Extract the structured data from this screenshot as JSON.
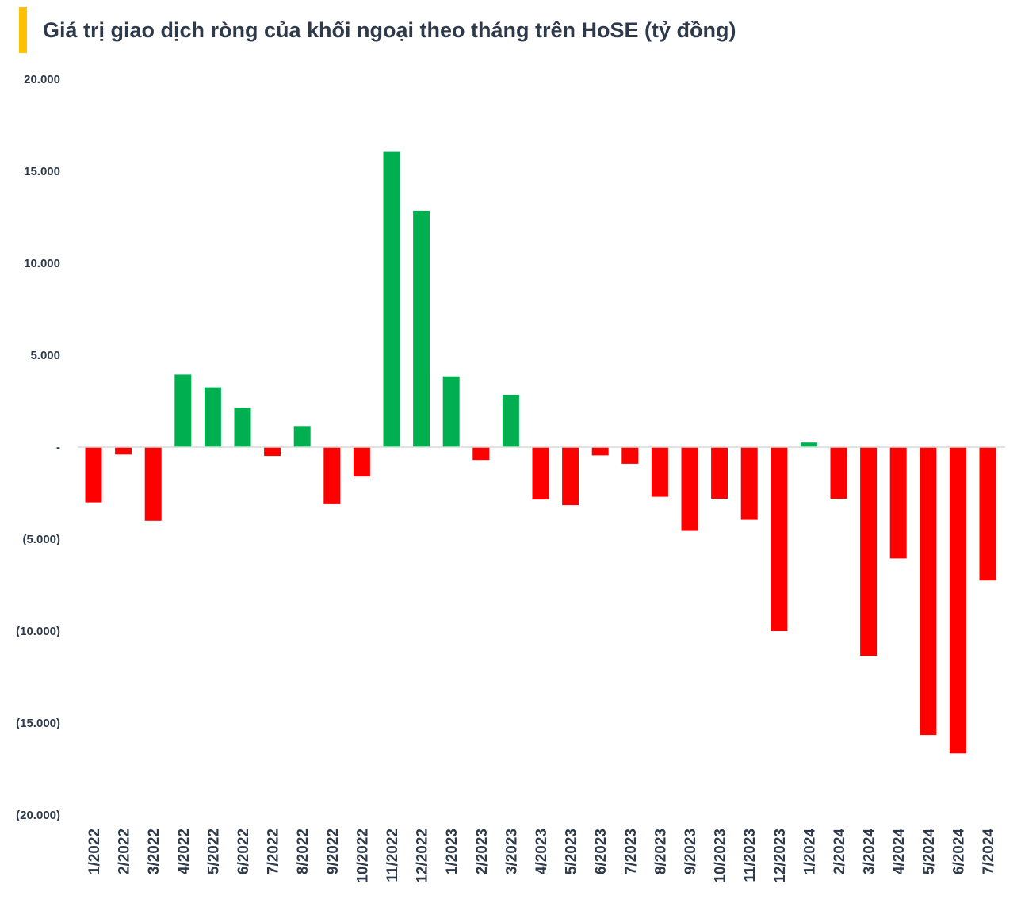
{
  "chart_data": {
    "type": "bar",
    "title": "Giá trị giao dịch ròng của khối ngoại theo tháng trên HoSE (tỷ đồng)",
    "categories": [
      "1/2022",
      "2/2022",
      "3/2022",
      "4/2022",
      "5/2022",
      "6/2022",
      "7/2022",
      "8/2022",
      "9/2022",
      "10/2022",
      "11/2022",
      "12/2022",
      "1/2023",
      "2/2023",
      "3/2023",
      "4/2023",
      "5/2023",
      "6/2023",
      "7/2023",
      "8/2023",
      "9/2023",
      "10/2023",
      "11/2023",
      "12/2023",
      "1/2024",
      "2/2024",
      "3/2024",
      "4/2024",
      "5/2024",
      "6/2024",
      "7/2024"
    ],
    "values": [
      -3000,
      -400,
      -4000,
      3950,
      3250,
      2150,
      -480,
      1150,
      -3100,
      -1600,
      16050,
      12850,
      3850,
      -700,
      2850,
      -2850,
      -3150,
      -450,
      -900,
      -2700,
      -4550,
      -2800,
      -3950,
      -10000,
      250,
      -2800,
      -11350,
      -6050,
      -15650,
      -16650,
      -7250
    ],
    "ylim": [
      -20000,
      20000
    ],
    "ytick_values": [
      20000,
      15000,
      10000,
      5000,
      0,
      -5000,
      -10000,
      -15000,
      -20000
    ],
    "ytick_labels": [
      "20.000",
      "15.000",
      "10.000",
      "5.000",
      "-",
      "(5.000)",
      "(10.000)",
      "(15.000)",
      "(20.000)"
    ],
    "grid": false,
    "legend": "none",
    "colors": {
      "positive": "#00b050",
      "negative": "#ff0000",
      "accent": "#ffc000",
      "text": "#2e3a4a",
      "zero_line": "#d9d9d9"
    }
  }
}
